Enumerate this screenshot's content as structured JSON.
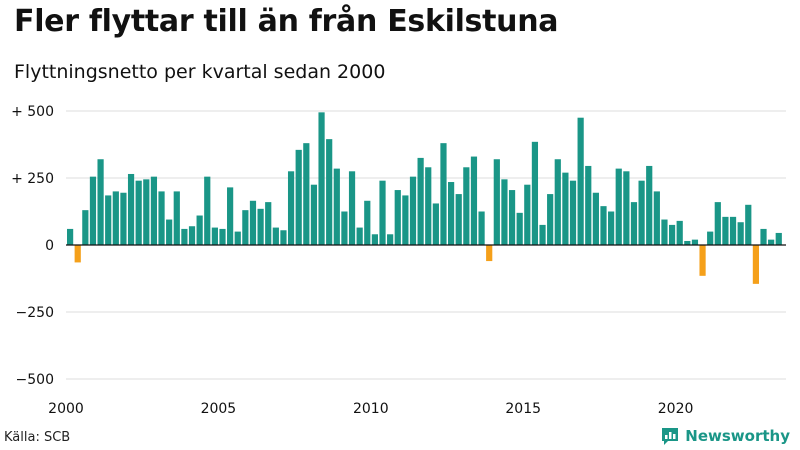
{
  "header": {
    "title": "Fler flyttar till än från Eskilstuna",
    "subtitle": "Flyttningsnetto per kvartal sedan 2000"
  },
  "footer": {
    "source": "Källa: SCB",
    "brand": "Newsworthy"
  },
  "colors": {
    "positive": "#1a9687",
    "negative": "#f5a01a",
    "grid": "#dddddd",
    "axis": "#111111"
  },
  "chart_data": {
    "type": "bar",
    "title": "Fler flyttar till än från Eskilstuna",
    "subtitle": "Flyttningsnetto per kvartal sedan 2000",
    "xlabel": "",
    "ylabel": "",
    "ylim": [
      -500,
      500
    ],
    "x_start": 2000,
    "periods_per_year": 4,
    "yticks": [
      {
        "value": 500,
        "label": "+ 500"
      },
      {
        "value": 250,
        "label": "+ 250"
      },
      {
        "value": 0,
        "label": "0"
      },
      {
        "value": -250,
        "label": "−250"
      },
      {
        "value": -500,
        "label": "−500"
      }
    ],
    "xticks": [
      {
        "value": 2000,
        "label": "2000"
      },
      {
        "value": 2005,
        "label": "2005"
      },
      {
        "value": 2010,
        "label": "2010"
      },
      {
        "value": 2015,
        "label": "2015"
      },
      {
        "value": 2020,
        "label": "2020"
      }
    ],
    "grid": true,
    "legend": "none",
    "series": [
      {
        "name": "Flyttningsnetto",
        "values": [
          60,
          -65,
          130,
          255,
          320,
          185,
          200,
          195,
          265,
          240,
          245,
          255,
          200,
          95,
          200,
          60,
          70,
          110,
          255,
          65,
          60,
          215,
          50,
          130,
          165,
          135,
          160,
          65,
          55,
          275,
          355,
          380,
          225,
          495,
          395,
          285,
          125,
          275,
          65,
          165,
          40,
          240,
          40,
          205,
          185,
          255,
          325,
          290,
          155,
          380,
          235,
          190,
          290,
          330,
          125,
          -60,
          320,
          245,
          205,
          120,
          225,
          385,
          75,
          190,
          320,
          270,
          240,
          475,
          295,
          195,
          145,
          125,
          285,
          275,
          160,
          240,
          295,
          200,
          95,
          75,
          90,
          15,
          20,
          -115,
          50,
          160,
          105,
          105,
          85,
          150,
          -145,
          60,
          20,
          45
        ]
      }
    ]
  }
}
